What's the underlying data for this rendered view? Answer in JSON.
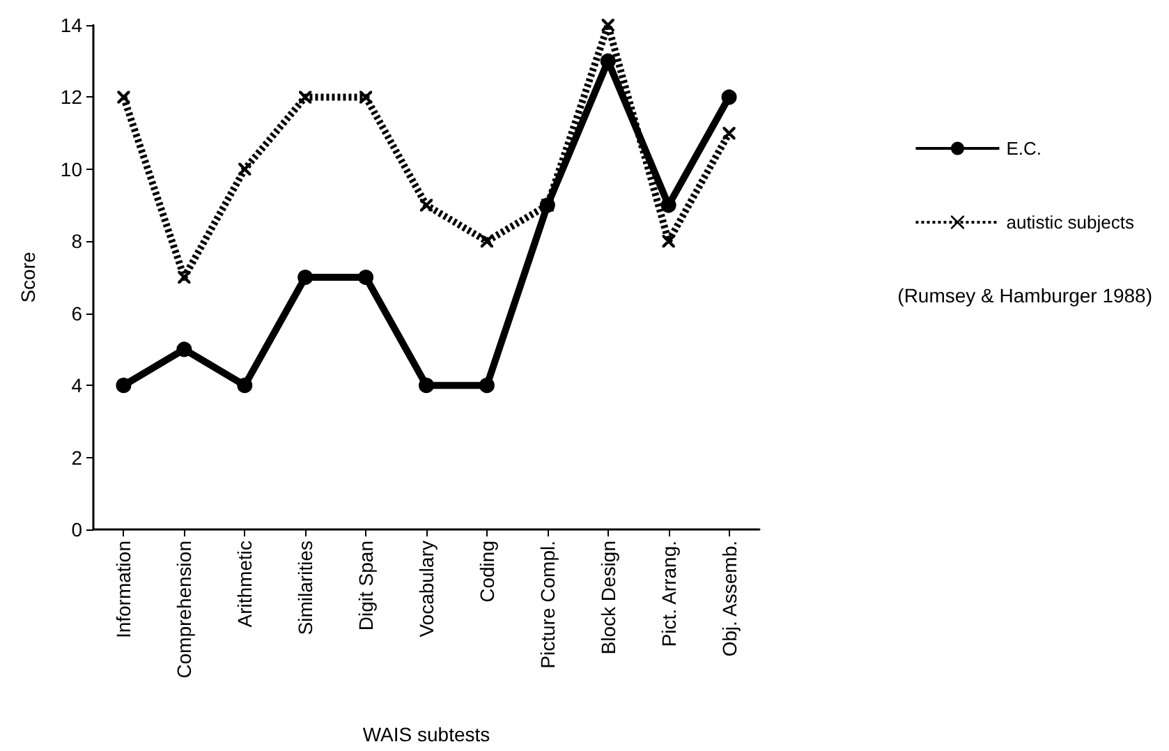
{
  "chart_data": {
    "type": "line",
    "xlabel": "WAIS subtests",
    "ylabel": "Score",
    "categories": [
      "Information",
      "Comprehension",
      "Arithmetic",
      "Similarities",
      "Digit Span",
      "Vocabulary",
      "Coding",
      "Picture Compl.",
      "Block Design",
      "Pict. Arrang.",
      "Obj. Assemb."
    ],
    "series": [
      {
        "name": "E.C.",
        "color": "#000000",
        "marker": "circle",
        "line_style": "solid",
        "values": [
          4,
          5,
          4,
          7,
          7,
          4,
          4,
          9,
          13,
          9,
          12
        ]
      },
      {
        "name": "autistic subjects",
        "color": "#000000",
        "marker": "cross",
        "line_style": "dotted",
        "values": [
          12,
          7,
          10,
          12,
          12,
          9,
          8,
          9,
          14,
          8,
          11
        ]
      }
    ],
    "annotations": [
      "(Rumsey & Hamburger 1988)"
    ],
    "ylim": [
      0,
      14
    ],
    "yticks": [
      0,
      2,
      4,
      6,
      8,
      10,
      12,
      14
    ],
    "grid": false,
    "legend": "right"
  }
}
